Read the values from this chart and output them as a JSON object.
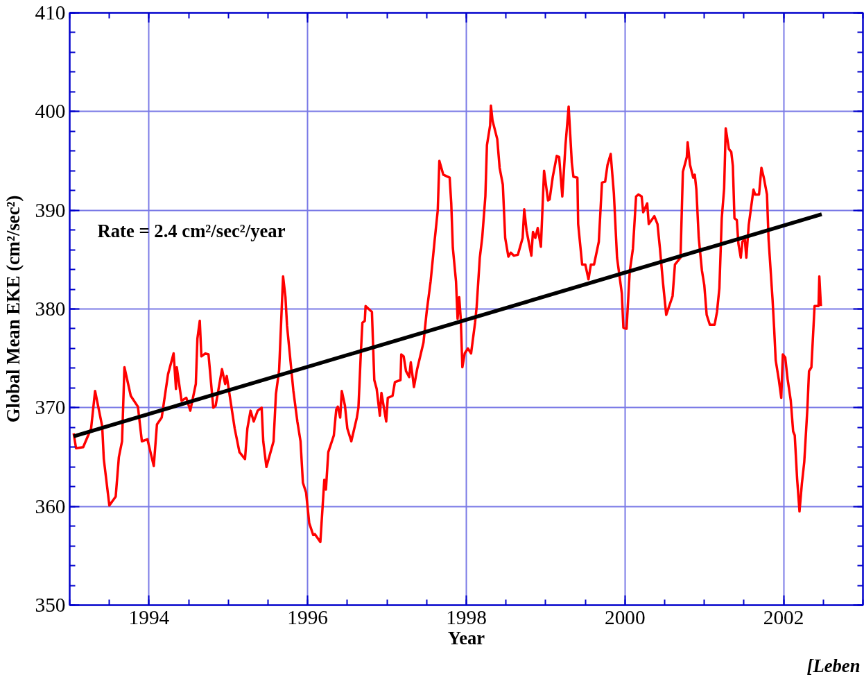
{
  "chart_data": {
    "type": "line",
    "xlabel": "Year",
    "ylabel": "Global Mean EKE (cm²/sec²)",
    "annotations": [
      "Rate = 2.4 cm²/sec²/year",
      "[Leben"
    ],
    "xlim": [
      1993,
      2003
    ],
    "ylim": [
      350,
      410
    ],
    "xticks": [
      1994,
      1996,
      1998,
      2000,
      2002
    ],
    "yticks": [
      350,
      360,
      370,
      380,
      390,
      400,
      410
    ],
    "grid": true,
    "line_style": "solid",
    "marker": "none",
    "series": [
      {
        "color": "#ff0000",
        "x": [
          1993.05,
          1993.08,
          1993.17,
          1993.27,
          1993.32,
          1993.41,
          1993.43,
          1993.5,
          1993.58,
          1993.62,
          1993.66,
          1993.69,
          1993.77,
          1993.86,
          1993.91,
          1993.98,
          1994.06,
          1994.1,
          1994.16,
          1994.24,
          1994.31,
          1994.34,
          1994.35,
          1994.41,
          1994.47,
          1994.52,
          1994.59,
          1994.61,
          1994.64,
          1994.66,
          1994.71,
          1994.75,
          1994.81,
          1994.84,
          1994.92,
          1994.96,
          1994.98,
          1995.08,
          1995.14,
          1995.21,
          1995.24,
          1995.28,
          1995.32,
          1995.37,
          1995.42,
          1995.44,
          1995.48,
          1995.57,
          1995.6,
          1995.64,
          1995.69,
          1995.72,
          1995.74,
          1995.82,
          1995.87,
          1995.91,
          1995.94,
          1995.98,
          1996.02,
          1996.07,
          1996.09,
          1996.16,
          1996.19,
          1996.21,
          1996.23,
          1996.26,
          1996.33,
          1996.36,
          1996.38,
          1996.41,
          1996.43,
          1996.47,
          1996.5,
          1996.55,
          1996.62,
          1996.64,
          1996.67,
          1996.69,
          1996.72,
          1996.73,
          1996.81,
          1996.84,
          1996.87,
          1996.91,
          1996.93,
          1996.99,
          1997.01,
          1997.07,
          1997.1,
          1997.17,
          1997.18,
          1997.21,
          1997.24,
          1997.28,
          1997.3,
          1997.34,
          1997.38,
          1997.46,
          1997.5,
          1997.55,
          1997.6,
          1997.64,
          1997.66,
          1997.71,
          1997.79,
          1997.81,
          1997.83,
          1997.87,
          1997.89,
          1997.91,
          1997.93,
          1997.95,
          1997.98,
          1998.02,
          1998.06,
          1998.11,
          1998.13,
          1998.17,
          1998.2,
          1998.24,
          1998.26,
          1998.3,
          1998.31,
          1998.33,
          1998.39,
          1998.42,
          1998.46,
          1998.49,
          1998.53,
          1998.56,
          1998.6,
          1998.65,
          1998.71,
          1998.73,
          1998.76,
          1998.82,
          1998.84,
          1998.87,
          1998.9,
          1998.94,
          1998.98,
          1999.03,
          1999.05,
          1999.09,
          1999.14,
          1999.17,
          1999.21,
          1999.25,
          1999.29,
          1999.33,
          1999.35,
          1999.4,
          1999.41,
          1999.46,
          1999.5,
          1999.54,
          1999.57,
          1999.61,
          1999.67,
          1999.71,
          1999.75,
          1999.78,
          1999.82,
          1999.86,
          1999.9,
          1999.96,
          1999.98,
          2000.02,
          2000.06,
          2000.1,
          2000.14,
          2000.17,
          2000.21,
          2000.23,
          2000.28,
          2000.3,
          2000.37,
          2000.41,
          2000.44,
          2000.48,
          2000.52,
          2000.6,
          2000.63,
          2000.7,
          2000.73,
          2000.78,
          2000.79,
          2000.82,
          2000.86,
          2000.88,
          2000.9,
          2000.93,
          2000.97,
          2001.0,
          2001.03,
          2001.07,
          2001.13,
          2001.16,
          2001.19,
          2001.22,
          2001.25,
          2001.27,
          2001.31,
          2001.34,
          2001.36,
          2001.38,
          2001.41,
          2001.43,
          2001.46,
          2001.48,
          2001.51,
          2001.53,
          2001.56,
          2001.59,
          2001.62,
          2001.64,
          2001.69,
          2001.72,
          2001.75,
          2001.79,
          2001.81,
          2001.86,
          2001.88,
          2001.9,
          2001.94,
          2001.97,
          2001.99,
          2002.02,
          2002.05,
          2002.09,
          2002.12,
          2002.14,
          2002.17,
          2002.2,
          2002.23,
          2002.26,
          2002.3,
          2002.32,
          2002.35,
          2002.39,
          2002.44,
          2002.45,
          2002.47
        ],
        "values": [
          367.4,
          365.9,
          366.0,
          367.9,
          371.7,
          368.1,
          364.8,
          360.1,
          361.0,
          365.0,
          366.6,
          374.1,
          371.2,
          370.1,
          366.6,
          366.8,
          364.1,
          368.3,
          369.0,
          373.4,
          375.5,
          371.9,
          374.1,
          370.7,
          371.0,
          369.7,
          372.4,
          377.0,
          378.8,
          375.2,
          375.5,
          375.4,
          370.0,
          370.2,
          373.9,
          372.4,
          373.2,
          367.9,
          365.5,
          364.8,
          367.9,
          369.7,
          368.6,
          369.7,
          370.0,
          366.6,
          364.0,
          366.6,
          371.4,
          373.8,
          383.3,
          381.2,
          378.3,
          371.7,
          368.6,
          366.6,
          362.4,
          361.4,
          358.3,
          357.1,
          357.2,
          356.4,
          360.2,
          362.7,
          361.7,
          365.5,
          367.2,
          369.8,
          370.1,
          369.0,
          371.7,
          370.2,
          367.9,
          366.6,
          369.0,
          370.0,
          375.5,
          378.6,
          378.8,
          380.3,
          379.7,
          372.8,
          371.9,
          369.2,
          371.5,
          368.6,
          371.0,
          371.2,
          372.6,
          372.8,
          375.4,
          375.2,
          373.7,
          373.1,
          374.6,
          372.1,
          373.9,
          376.6,
          379.7,
          382.8,
          386.9,
          390.0,
          395.0,
          393.6,
          393.3,
          390.7,
          386.2,
          382.8,
          379.0,
          381.2,
          379.0,
          374.1,
          375.5,
          376.0,
          375.5,
          378.6,
          380.2,
          385.2,
          387.2,
          391.4,
          396.6,
          398.6,
          400.6,
          399.1,
          397.2,
          394.3,
          392.6,
          387.2,
          385.3,
          385.7,
          385.4,
          385.5,
          387.2,
          390.1,
          387.9,
          385.4,
          387.8,
          387.2,
          388.2,
          386.3,
          394.0,
          391.0,
          391.1,
          393.4,
          395.5,
          395.4,
          391.4,
          396.6,
          400.5,
          394.8,
          393.4,
          393.3,
          388.6,
          384.5,
          384.5,
          383.0,
          384.5,
          384.5,
          386.8,
          392.8,
          392.9,
          394.6,
          395.7,
          391.7,
          385.2,
          381.6,
          378.1,
          378.0,
          383.8,
          386.1,
          391.4,
          391.6,
          391.4,
          389.8,
          390.7,
          388.6,
          389.4,
          388.6,
          386.2,
          382.6,
          379.4,
          381.3,
          384.5,
          385.2,
          393.9,
          395.4,
          396.9,
          394.6,
          393.3,
          393.6,
          392.1,
          387.2,
          383.9,
          382.4,
          379.4,
          378.4,
          378.4,
          379.7,
          382.1,
          389.2,
          392.2,
          398.3,
          396.2,
          395.9,
          394.5,
          389.2,
          389.0,
          386.6,
          385.2,
          386.8,
          387.1,
          385.2,
          388.5,
          390.3,
          392.1,
          391.6,
          391.6,
          394.3,
          393.3,
          391.6,
          387.1,
          381.0,
          378.1,
          374.8,
          372.8,
          371.0,
          375.4,
          375.1,
          372.9,
          370.7,
          367.6,
          367.2,
          362.8,
          359.5,
          362.3,
          364.5,
          370.0,
          373.7,
          374.1,
          380.3,
          380.3,
          383.3,
          380.3
        ]
      },
      {
        "color": "#000000",
        "x": [
          1993.05,
          2002.48
        ],
        "values": [
          367.1,
          389.6
        ]
      }
    ]
  }
}
